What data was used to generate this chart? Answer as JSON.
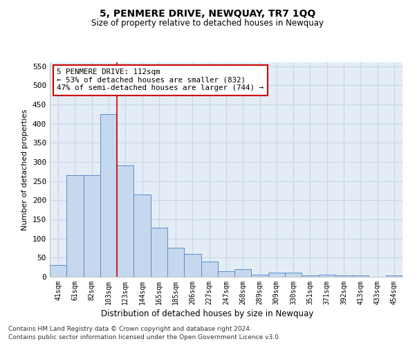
{
  "title": "5, PENMERE DRIVE, NEWQUAY, TR7 1QQ",
  "subtitle": "Size of property relative to detached houses in Newquay",
  "xlabel": "Distribution of detached houses by size in Newquay",
  "ylabel": "Number of detached properties",
  "categories": [
    "41sqm",
    "61sqm",
    "82sqm",
    "103sqm",
    "123sqm",
    "144sqm",
    "165sqm",
    "185sqm",
    "206sqm",
    "227sqm",
    "247sqm",
    "268sqm",
    "289sqm",
    "309sqm",
    "330sqm",
    "351sqm",
    "371sqm",
    "392sqm",
    "413sqm",
    "433sqm",
    "454sqm"
  ],
  "values": [
    30,
    265,
    265,
    425,
    290,
    215,
    128,
    76,
    60,
    40,
    15,
    19,
    5,
    10,
    10,
    3,
    5,
    3,
    3,
    0,
    3
  ],
  "bar_color": "#c5d8ee",
  "bar_edge_color": "#5b8dc8",
  "property_line_x": 3.5,
  "annotation_line1": "5 PENMERE DRIVE: 112sqm",
  "annotation_line2": "← 53% of detached houses are smaller (832)",
  "annotation_line3": "47% of semi-detached houses are larger (744) →",
  "annotation_box_color": "#ffffff",
  "annotation_box_edge": "#cc0000",
  "vline_color": "#cc0000",
  "grid_color": "#c5d5e5",
  "bg_color": "#e4edf6",
  "footer_line1": "Contains HM Land Registry data © Crown copyright and database right 2024.",
  "footer_line2": "Contains public sector information licensed under the Open Government Licence v3.0.",
  "ylim": [
    0,
    560
  ],
  "yticks": [
    0,
    50,
    100,
    150,
    200,
    250,
    300,
    350,
    400,
    450,
    500,
    550
  ]
}
